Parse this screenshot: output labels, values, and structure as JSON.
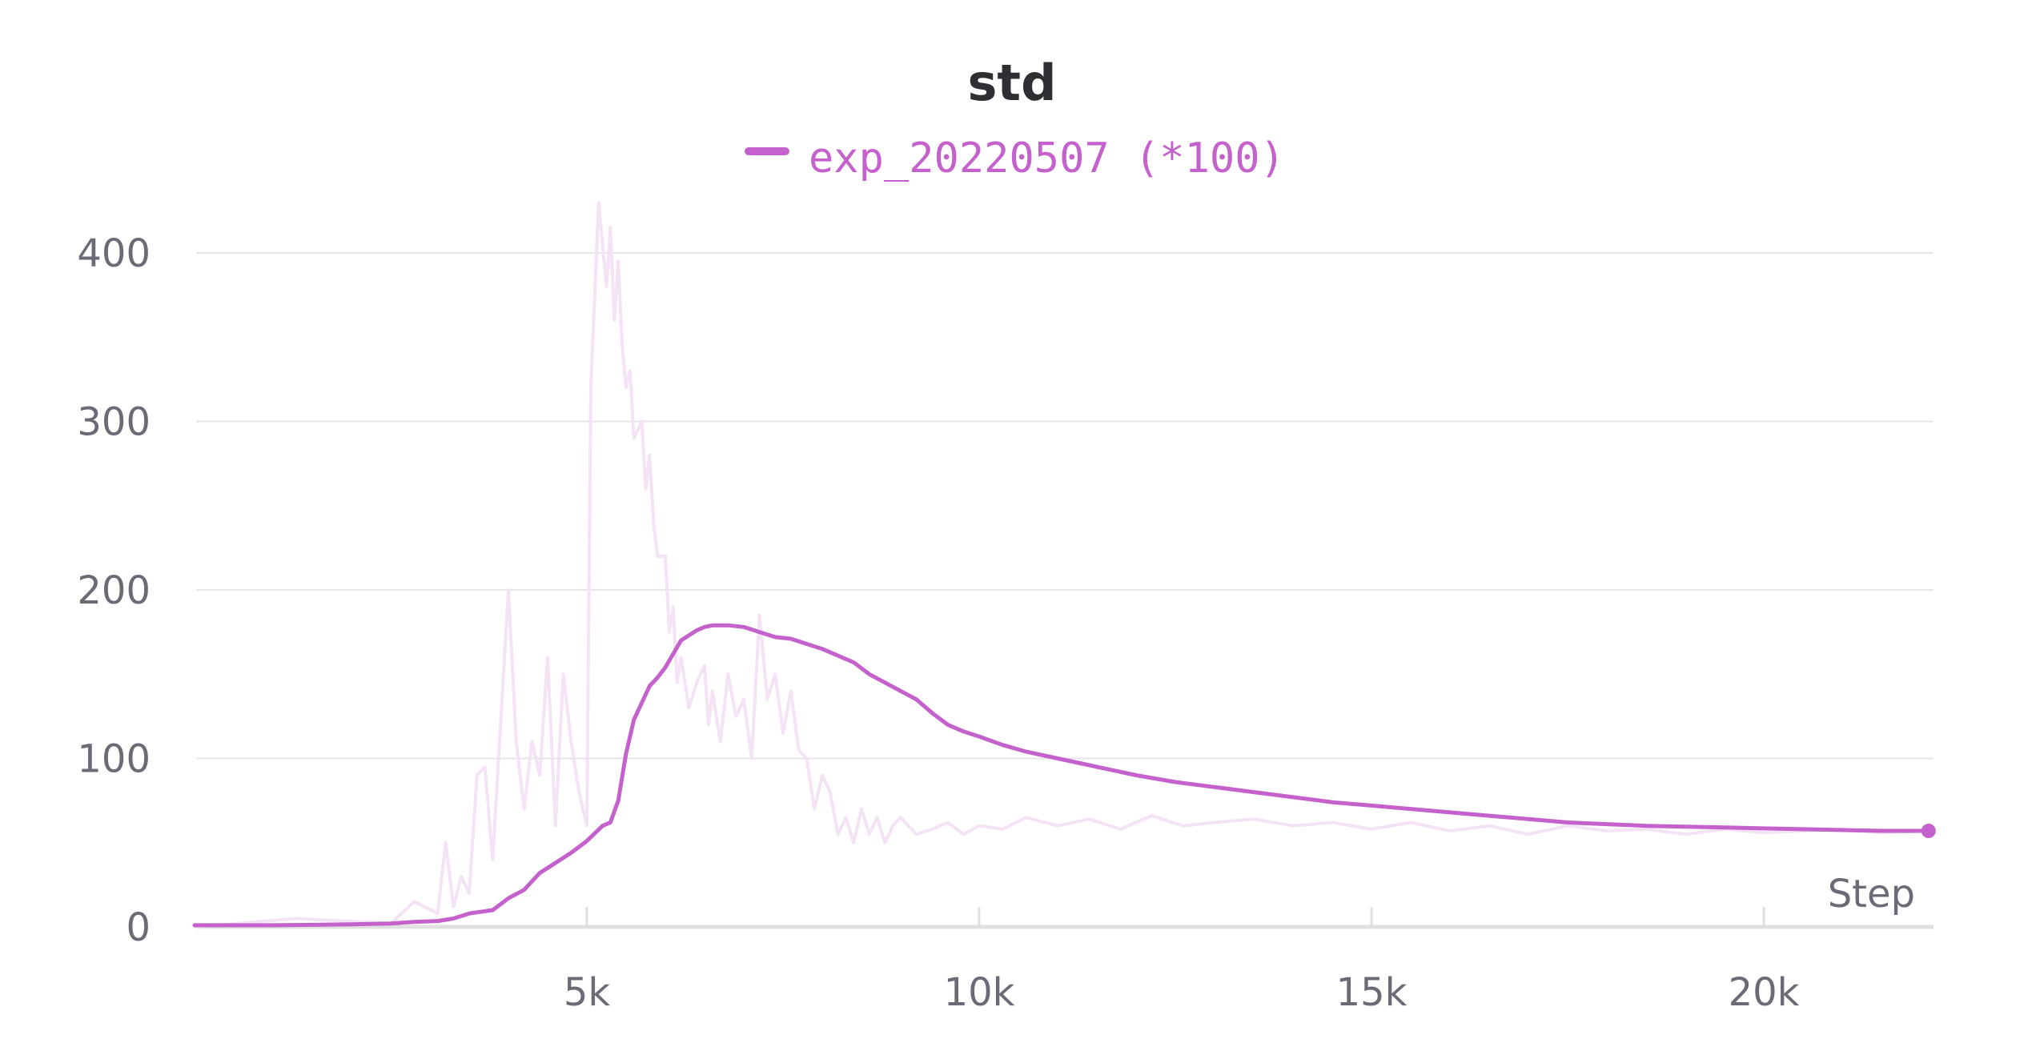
{
  "chart_data": {
    "type": "line",
    "title": "std",
    "xlabel": "Step",
    "ylabel": "",
    "xlim": [
      0,
      22100
    ],
    "ylim": [
      0,
      430
    ],
    "x_ticks": [
      5000,
      10000,
      15000,
      20000
    ],
    "x_tick_labels": [
      "5k",
      "10k",
      "15k",
      "20k"
    ],
    "y_ticks": [
      0,
      100,
      200,
      300,
      400
    ],
    "y_tick_labels": [
      "0",
      "100",
      "200",
      "300",
      "400"
    ],
    "grid": true,
    "legend_position": "top-center",
    "colors": {
      "series": "#c561cc",
      "raw": "#f3e3f5",
      "grid": "#e6e6ea",
      "axis": "#e0e0e0",
      "tick_text": "#6b6b76",
      "title": "#2e2e33"
    },
    "series": [
      {
        "name": "exp_20220507 (*100)",
        "kind": "smoothed",
        "x": [
          0,
          1000,
          2000,
          2500,
          2800,
          3100,
          3300,
          3500,
          3800,
          4000,
          4200,
          4400,
          4600,
          4800,
          5000,
          5200,
          5300,
          5400,
          5500,
          5600,
          5700,
          5800,
          5900,
          6000,
          6100,
          6200,
          6300,
          6400,
          6500,
          6600,
          6800,
          7000,
          7200,
          7400,
          7600,
          7800,
          8000,
          8200,
          8400,
          8600,
          8800,
          9000,
          9200,
          9400,
          9600,
          9800,
          10000,
          10300,
          10600,
          11000,
          11500,
          12000,
          12500,
          13000,
          13500,
          14000,
          14500,
          15000,
          15500,
          16000,
          16500,
          17000,
          17500,
          18000,
          18500,
          19000,
          19500,
          20000,
          20500,
          21000,
          21500,
          22100
        ],
        "y": [
          1,
          1,
          1.5,
          2,
          3,
          3.5,
          5,
          8,
          10,
          17,
          22,
          32,
          38,
          44,
          51,
          60,
          62,
          75,
          103,
          123,
          133,
          143,
          148,
          154,
          162,
          170,
          173,
          176,
          178,
          179,
          179,
          178,
          175,
          172,
          171,
          168,
          165,
          161,
          157,
          150,
          145,
          140,
          135,
          127,
          120,
          116,
          113,
          108,
          104,
          100,
          95,
          90,
          86,
          83,
          80,
          77,
          74,
          72,
          70,
          68,
          66,
          64,
          62,
          61,
          60,
          59.5,
          59,
          58.5,
          58,
          57.5,
          57,
          57
        ]
      },
      {
        "name": "",
        "kind": "raw",
        "x": [
          0,
          1300,
          2500,
          2800,
          3100,
          3200,
          3300,
          3400,
          3500,
          3600,
          3700,
          3800,
          3900,
          4000,
          4100,
          4200,
          4300,
          4400,
          4500,
          4600,
          4700,
          4800,
          4900,
          5000,
          5050,
          5150,
          5250,
          5300,
          5350,
          5400,
          5450,
          5500,
          5550,
          5600,
          5700,
          5750,
          5800,
          5850,
          5900,
          6000,
          6050,
          6100,
          6150,
          6200,
          6300,
          6400,
          6500,
          6550,
          6600,
          6700,
          6800,
          6900,
          7000,
          7100,
          7200,
          7300,
          7400,
          7500,
          7600,
          7700,
          7800,
          7900,
          8000,
          8100,
          8200,
          8300,
          8400,
          8500,
          8600,
          8700,
          8800,
          8900,
          9000,
          9200,
          9400,
          9600,
          9800,
          10000,
          10300,
          10600,
          11000,
          11400,
          11800,
          12200,
          12600,
          13000,
          13500,
          14000,
          14500,
          15000,
          15500,
          16000,
          16500,
          17000,
          17500,
          18000,
          18500,
          19000,
          19500,
          20000,
          20500,
          21000,
          21500,
          22100
        ],
        "y": [
          0,
          5,
          2,
          15,
          8,
          50,
          12,
          30,
          20,
          90,
          95,
          40,
          120,
          200,
          110,
          70,
          110,
          90,
          160,
          60,
          150,
          110,
          80,
          60,
          320,
          430,
          380,
          415,
          360,
          395,
          345,
          320,
          330,
          290,
          300,
          260,
          280,
          240,
          220,
          220,
          175,
          190,
          145,
          160,
          130,
          145,
          155,
          120,
          140,
          110,
          150,
          125,
          135,
          100,
          185,
          135,
          150,
          115,
          140,
          105,
          100,
          70,
          90,
          80,
          55,
          65,
          50,
          70,
          55,
          65,
          50,
          60,
          65,
          55,
          58,
          62,
          55,
          60,
          58,
          65,
          60,
          64,
          58,
          66,
          60,
          62,
          64,
          60,
          62,
          58,
          62,
          57,
          60,
          55,
          60,
          57,
          58,
          55,
          58,
          56,
          57,
          58,
          56,
          57
        ]
      }
    ]
  }
}
